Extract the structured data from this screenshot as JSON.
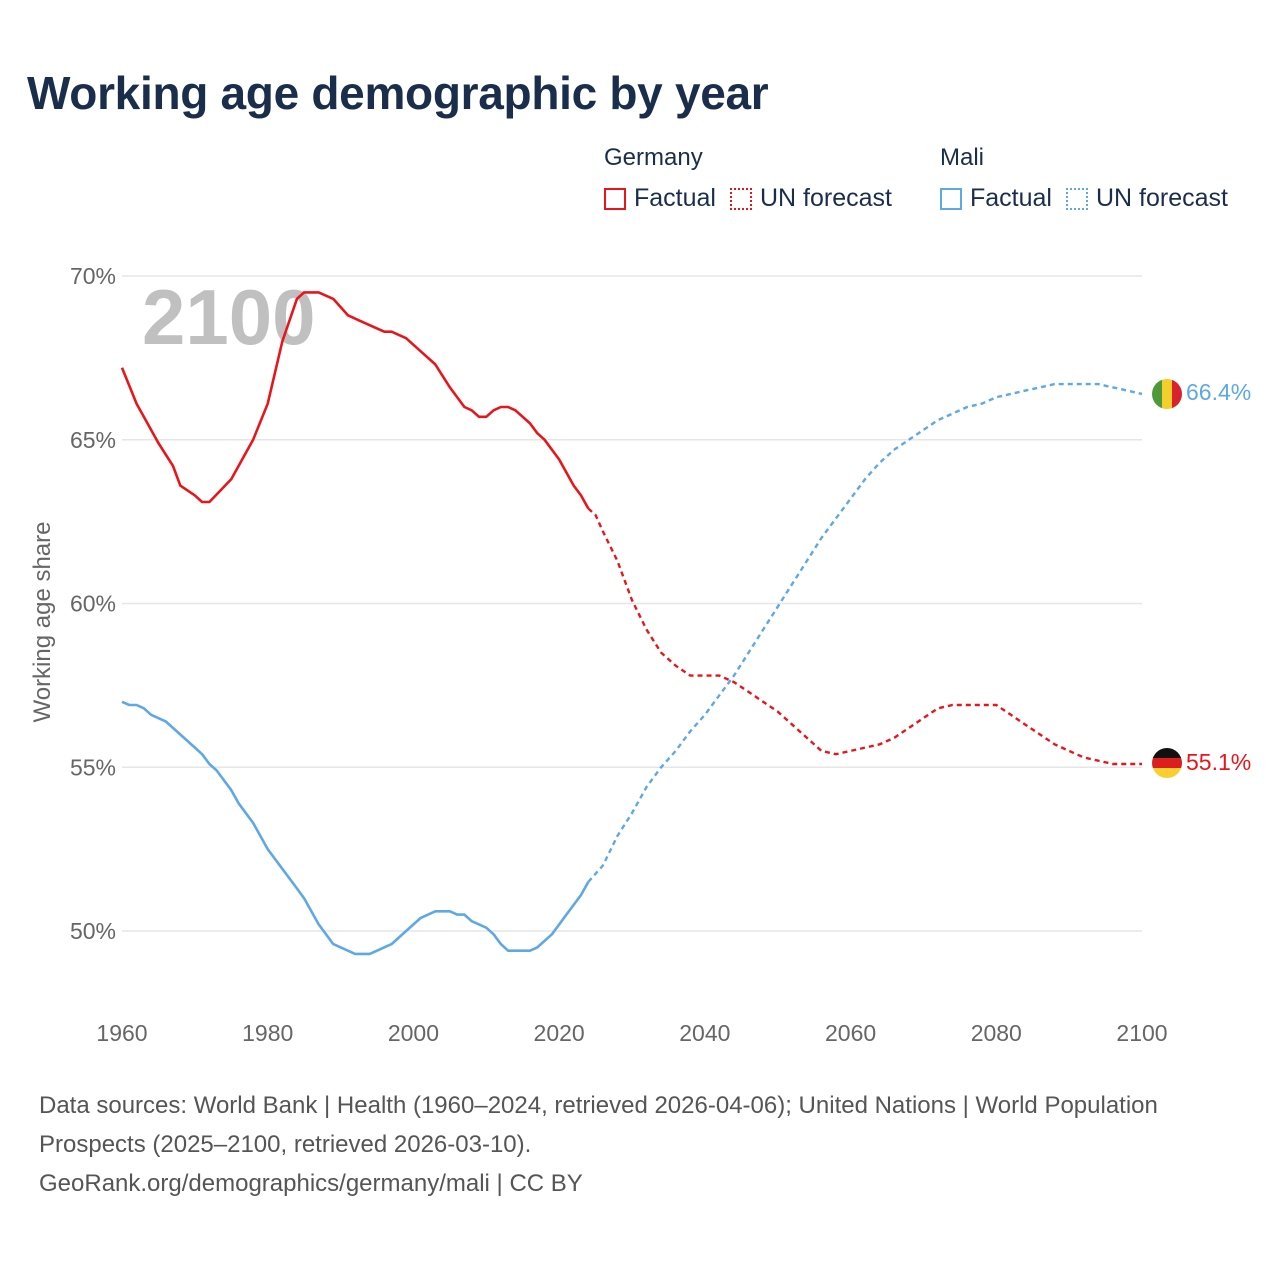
{
  "title": "Working age demographic by year",
  "legend": [
    {
      "country": "Germany",
      "color": "#e8161b",
      "factual_label": "Factual",
      "forecast_label": "UN forecast"
    },
    {
      "country": "Mali",
      "color": "#5ea8e6",
      "factual_label": "Factual",
      "forecast_label": "UN forecast"
    }
  ],
  "overlay_year": "2100",
  "end_labels": {
    "germany": "55.1%",
    "mali": "66.4%"
  },
  "footer": {
    "sources": "Data sources: World Bank | Health (1960–2024, retrieved 2026-04-06); United Nations | World Population Prospects (2025–2100, retrieved 2026-03-10).",
    "credit": "GeoRank.org/demographics/germany/mali | CC BY"
  },
  "chart_data": {
    "type": "line",
    "title": "Working age demographic by year",
    "xlabel": "",
    "ylabel": "Working age share",
    "xlim": [
      1960,
      2100
    ],
    "ylim": [
      48,
      71
    ],
    "y_ticks": [
      50,
      55,
      60,
      65,
      70
    ],
    "y_tick_labels": [
      "50%",
      "55%",
      "60%",
      "65%",
      "70%"
    ],
    "x_ticks": [
      1960,
      1980,
      2000,
      2020,
      2040,
      2060,
      2080,
      2100
    ],
    "x_tick_labels": [
      "1960",
      "1980",
      "2000",
      "2020",
      "2040",
      "2060",
      "2080",
      "2100"
    ],
    "grid": true,
    "series": [
      {
        "name": "Germany",
        "color": "#e8161b",
        "factual": [
          [
            1960,
            67.2
          ],
          [
            1962,
            66.1
          ],
          [
            1965,
            64.9
          ],
          [
            1967,
            64.2
          ],
          [
            1968,
            63.6
          ],
          [
            1970,
            63.3
          ],
          [
            1971,
            63.1
          ],
          [
            1972,
            63.1
          ],
          [
            1975,
            63.8
          ],
          [
            1978,
            65.0
          ],
          [
            1980,
            66.1
          ],
          [
            1982,
            68.0
          ],
          [
            1984,
            69.3
          ],
          [
            1985,
            69.5
          ],
          [
            1987,
            69.5
          ],
          [
            1989,
            69.3
          ],
          [
            1991,
            68.8
          ],
          [
            1993,
            68.6
          ],
          [
            1996,
            68.3
          ],
          [
            1997,
            68.3
          ],
          [
            1999,
            68.1
          ],
          [
            2001,
            67.7
          ],
          [
            2003,
            67.3
          ],
          [
            2005,
            66.6
          ],
          [
            2007,
            66.0
          ],
          [
            2008,
            65.9
          ],
          [
            2009,
            65.7
          ],
          [
            2010,
            65.7
          ],
          [
            2011,
            65.9
          ],
          [
            2012,
            66.0
          ],
          [
            2013,
            66.0
          ],
          [
            2014,
            65.9
          ],
          [
            2016,
            65.5
          ],
          [
            2017,
            65.2
          ],
          [
            2018,
            65.0
          ],
          [
            2020,
            64.4
          ],
          [
            2022,
            63.6
          ],
          [
            2023,
            63.3
          ],
          [
            2024,
            62.9
          ]
        ],
        "forecast": [
          [
            2024,
            62.9
          ],
          [
            2025,
            62.7
          ],
          [
            2026,
            62.2
          ],
          [
            2028,
            61.3
          ],
          [
            2030,
            60.1
          ],
          [
            2032,
            59.2
          ],
          [
            2034,
            58.5
          ],
          [
            2036,
            58.1
          ],
          [
            2038,
            57.8
          ],
          [
            2040,
            57.8
          ],
          [
            2042,
            57.8
          ],
          [
            2044,
            57.6
          ],
          [
            2046,
            57.3
          ],
          [
            2048,
            57.0
          ],
          [
            2050,
            56.7
          ],
          [
            2052,
            56.3
          ],
          [
            2054,
            55.9
          ],
          [
            2056,
            55.5
          ],
          [
            2058,
            55.4
          ],
          [
            2060,
            55.5
          ],
          [
            2062,
            55.6
          ],
          [
            2064,
            55.7
          ],
          [
            2066,
            55.9
          ],
          [
            2068,
            56.2
          ],
          [
            2070,
            56.5
          ],
          [
            2072,
            56.8
          ],
          [
            2074,
            56.9
          ],
          [
            2076,
            56.9
          ],
          [
            2078,
            56.9
          ],
          [
            2080,
            56.9
          ],
          [
            2082,
            56.6
          ],
          [
            2084,
            56.3
          ],
          [
            2086,
            56.0
          ],
          [
            2088,
            55.7
          ],
          [
            2090,
            55.5
          ],
          [
            2092,
            55.3
          ],
          [
            2094,
            55.2
          ],
          [
            2096,
            55.1
          ],
          [
            2098,
            55.1
          ],
          [
            2100,
            55.1
          ]
        ]
      },
      {
        "name": "Mali",
        "color": "#5ea8e6",
        "factual": [
          [
            1960,
            57.0
          ],
          [
            1961,
            56.9
          ],
          [
            1962,
            56.9
          ],
          [
            1963,
            56.8
          ],
          [
            1964,
            56.6
          ],
          [
            1966,
            56.4
          ],
          [
            1968,
            56.0
          ],
          [
            1970,
            55.6
          ],
          [
            1971,
            55.4
          ],
          [
            1972,
            55.1
          ],
          [
            1973,
            54.9
          ],
          [
            1975,
            54.3
          ],
          [
            1976,
            53.9
          ],
          [
            1978,
            53.3
          ],
          [
            1980,
            52.5
          ],
          [
            1982,
            51.9
          ],
          [
            1984,
            51.3
          ],
          [
            1985,
            51.0
          ],
          [
            1987,
            50.2
          ],
          [
            1989,
            49.6
          ],
          [
            1992,
            49.3
          ],
          [
            1994,
            49.3
          ],
          [
            1997,
            49.6
          ],
          [
            1999,
            50.0
          ],
          [
            2001,
            50.4
          ],
          [
            2003,
            50.6
          ],
          [
            2005,
            50.6
          ],
          [
            2006,
            50.5
          ],
          [
            2007,
            50.5
          ],
          [
            2008,
            50.3
          ],
          [
            2010,
            50.1
          ],
          [
            2011,
            49.9
          ],
          [
            2012,
            49.6
          ],
          [
            2013,
            49.4
          ],
          [
            2014,
            49.4
          ],
          [
            2016,
            49.4
          ],
          [
            2017,
            49.5
          ],
          [
            2019,
            49.9
          ],
          [
            2021,
            50.5
          ],
          [
            2023,
            51.1
          ],
          [
            2024,
            51.5
          ]
        ],
        "forecast": [
          [
            2024,
            51.5
          ],
          [
            2026,
            52.0
          ],
          [
            2028,
            52.9
          ],
          [
            2030,
            53.6
          ],
          [
            2032,
            54.4
          ],
          [
            2034,
            55.0
          ],
          [
            2036,
            55.5
          ],
          [
            2038,
            56.1
          ],
          [
            2040,
            56.6
          ],
          [
            2042,
            57.2
          ],
          [
            2044,
            57.8
          ],
          [
            2046,
            58.5
          ],
          [
            2048,
            59.2
          ],
          [
            2050,
            59.9
          ],
          [
            2052,
            60.6
          ],
          [
            2054,
            61.3
          ],
          [
            2056,
            62.0
          ],
          [
            2058,
            62.6
          ],
          [
            2060,
            63.2
          ],
          [
            2062,
            63.8
          ],
          [
            2064,
            64.3
          ],
          [
            2066,
            64.7
          ],
          [
            2068,
            65.0
          ],
          [
            2070,
            65.3
          ],
          [
            2072,
            65.6
          ],
          [
            2074,
            65.8
          ],
          [
            2076,
            66.0
          ],
          [
            2078,
            66.1
          ],
          [
            2080,
            66.3
          ],
          [
            2082,
            66.4
          ],
          [
            2084,
            66.5
          ],
          [
            2086,
            66.6
          ],
          [
            2088,
            66.7
          ],
          [
            2090,
            66.7
          ],
          [
            2092,
            66.7
          ],
          [
            2094,
            66.7
          ],
          [
            2096,
            66.6
          ],
          [
            2098,
            66.5
          ],
          [
            2100,
            66.4
          ]
        ]
      }
    ]
  }
}
